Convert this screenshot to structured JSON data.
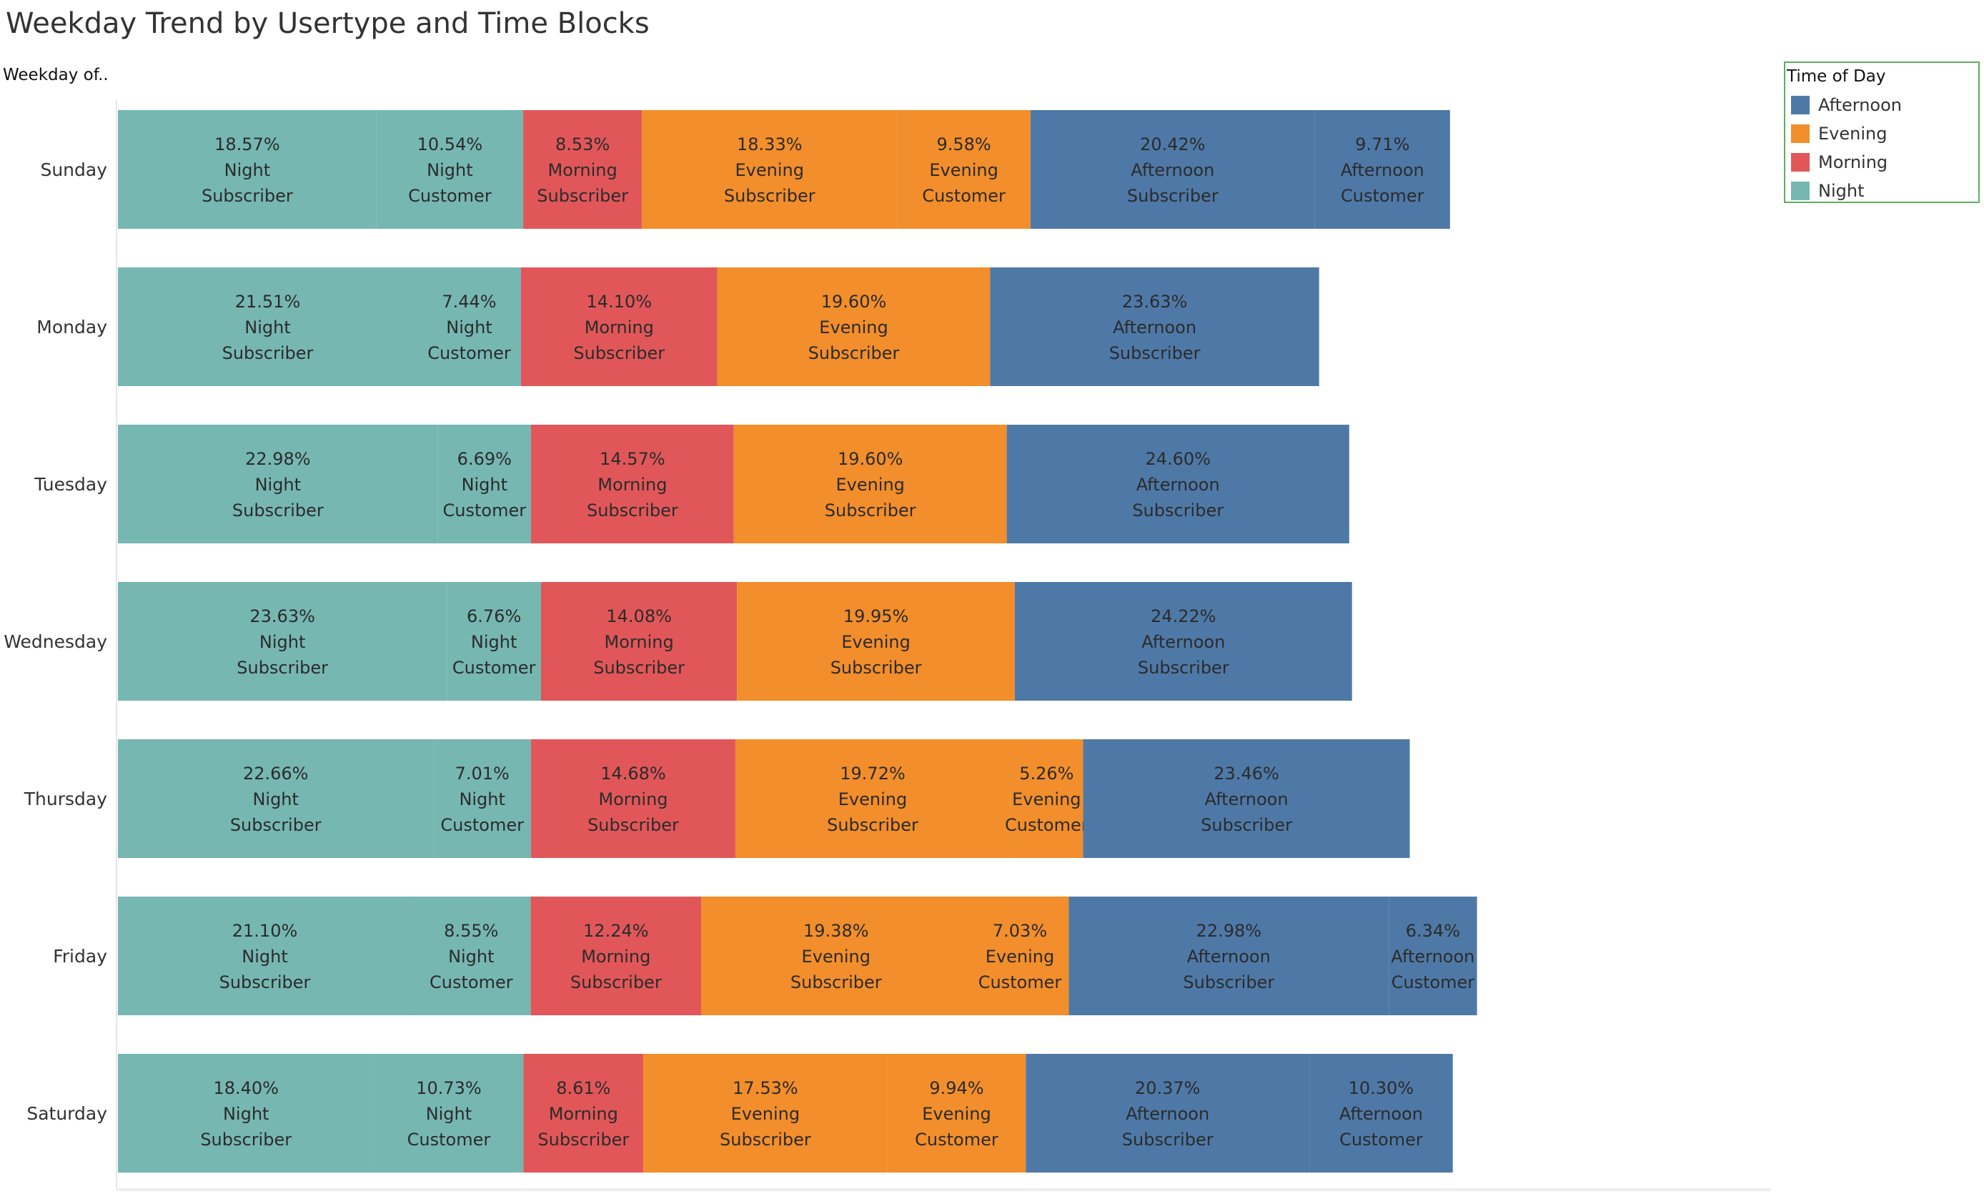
{
  "title": "Weekday Trend by Usertype and Time Blocks",
  "axis_title": "Weekday of..",
  "legend": {
    "title": "Time of Day",
    "items": [
      {
        "label": "Afternoon",
        "color": "#4e79a7"
      },
      {
        "label": "Evening",
        "color": "#f28e2b"
      },
      {
        "label": "Morning",
        "color": "#e15759"
      },
      {
        "label": "Night",
        "color": "#76b7b2"
      }
    ]
  },
  "chart_data": {
    "type": "bar",
    "orientation": "horizontal",
    "stacked": true,
    "categories": [
      "Sunday",
      "Monday",
      "Tuesday",
      "Wednesday",
      "Thursday",
      "Friday",
      "Saturday"
    ],
    "colors": {
      "Night": "#76b7b2",
      "Morning": "#e15759",
      "Evening": "#f28e2b",
      "Afternoon": "#4e79a7"
    },
    "rows": [
      {
        "category": "Sunday",
        "segments": [
          {
            "time": "Night",
            "usertype": "Subscriber",
            "value": 18.57,
            "label": "18.57%"
          },
          {
            "time": "Night",
            "usertype": "Customer",
            "value": 10.54,
            "label": "10.54%"
          },
          {
            "time": "Morning",
            "usertype": "Subscriber",
            "value": 8.53,
            "label": "8.53%"
          },
          {
            "time": "Evening",
            "usertype": "Subscriber",
            "value": 18.33,
            "label": "18.33%"
          },
          {
            "time": "Evening",
            "usertype": "Customer",
            "value": 9.58,
            "label": "9.58%"
          },
          {
            "time": "Afternoon",
            "usertype": "Subscriber",
            "value": 20.42,
            "label": "20.42%"
          },
          {
            "time": "Afternoon",
            "usertype": "Customer",
            "value": 9.71,
            "label": "9.71%"
          }
        ]
      },
      {
        "category": "Monday",
        "segments": [
          {
            "time": "Night",
            "usertype": "Subscriber",
            "value": 21.51,
            "label": "21.51%"
          },
          {
            "time": "Night",
            "usertype": "Customer",
            "value": 7.44,
            "label": "7.44%"
          },
          {
            "time": "Morning",
            "usertype": "Subscriber",
            "value": 14.1,
            "label": "14.10%"
          },
          {
            "time": "Evening",
            "usertype": "Subscriber",
            "value": 19.6,
            "label": "19.60%"
          },
          {
            "time": "Afternoon",
            "usertype": "Subscriber",
            "value": 23.63,
            "label": "23.63%"
          }
        ]
      },
      {
        "category": "Tuesday",
        "segments": [
          {
            "time": "Night",
            "usertype": "Subscriber",
            "value": 22.98,
            "label": "22.98%"
          },
          {
            "time": "Night",
            "usertype": "Customer",
            "value": 6.69,
            "label": "6.69%"
          },
          {
            "time": "Morning",
            "usertype": "Subscriber",
            "value": 14.57,
            "label": "14.57%"
          },
          {
            "time": "Evening",
            "usertype": "Subscriber",
            "value": 19.6,
            "label": "19.60%"
          },
          {
            "time": "Afternoon",
            "usertype": "Subscriber",
            "value": 24.6,
            "label": "24.60%"
          }
        ]
      },
      {
        "category": "Wednesday",
        "segments": [
          {
            "time": "Night",
            "usertype": "Subscriber",
            "value": 23.63,
            "label": "23.63%"
          },
          {
            "time": "Night",
            "usertype": "Customer",
            "value": 6.76,
            "label": "6.76%"
          },
          {
            "time": "Morning",
            "usertype": "Subscriber",
            "value": 14.08,
            "label": "14.08%"
          },
          {
            "time": "Evening",
            "usertype": "Subscriber",
            "value": 19.95,
            "label": "19.95%"
          },
          {
            "time": "Afternoon",
            "usertype": "Subscriber",
            "value": 24.22,
            "label": "24.22%"
          }
        ]
      },
      {
        "category": "Thursday",
        "segments": [
          {
            "time": "Night",
            "usertype": "Subscriber",
            "value": 22.66,
            "label": "22.66%"
          },
          {
            "time": "Night",
            "usertype": "Customer",
            "value": 7.01,
            "label": "7.01%"
          },
          {
            "time": "Morning",
            "usertype": "Subscriber",
            "value": 14.68,
            "label": "14.68%"
          },
          {
            "time": "Evening",
            "usertype": "Subscriber",
            "value": 19.72,
            "label": "19.72%"
          },
          {
            "time": "Evening",
            "usertype": "Customer",
            "value": 5.26,
            "label": "5.26%"
          },
          {
            "time": "Afternoon",
            "usertype": "Subscriber",
            "value": 23.46,
            "label": "23.46%"
          }
        ]
      },
      {
        "category": "Friday",
        "segments": [
          {
            "time": "Night",
            "usertype": "Subscriber",
            "value": 21.1,
            "label": "21.10%"
          },
          {
            "time": "Night",
            "usertype": "Customer",
            "value": 8.55,
            "label": "8.55%"
          },
          {
            "time": "Morning",
            "usertype": "Subscriber",
            "value": 12.24,
            "label": "12.24%"
          },
          {
            "time": "Evening",
            "usertype": "Subscriber",
            "value": 19.38,
            "label": "19.38%"
          },
          {
            "time": "Evening",
            "usertype": "Customer",
            "value": 7.03,
            "label": "7.03%"
          },
          {
            "time": "Afternoon",
            "usertype": "Subscriber",
            "value": 22.98,
            "label": "22.98%"
          },
          {
            "time": "Afternoon",
            "usertype": "Customer",
            "value": 6.34,
            "label": "6.34%"
          }
        ]
      },
      {
        "category": "Saturday",
        "segments": [
          {
            "time": "Night",
            "usertype": "Subscriber",
            "value": 18.4,
            "label": "18.40%"
          },
          {
            "time": "Night",
            "usertype": "Customer",
            "value": 10.73,
            "label": "10.73%"
          },
          {
            "time": "Morning",
            "usertype": "Subscriber",
            "value": 8.61,
            "label": "8.61%"
          },
          {
            "time": "Evening",
            "usertype": "Subscriber",
            "value": 17.53,
            "label": "17.53%"
          },
          {
            "time": "Evening",
            "usertype": "Customer",
            "value": 9.94,
            "label": "9.94%"
          },
          {
            "time": "Afternoon",
            "usertype": "Subscriber",
            "value": 20.37,
            "label": "20.37%"
          },
          {
            "time": "Afternoon",
            "usertype": "Customer",
            "value": 10.3,
            "label": "10.30%"
          }
        ]
      }
    ]
  }
}
